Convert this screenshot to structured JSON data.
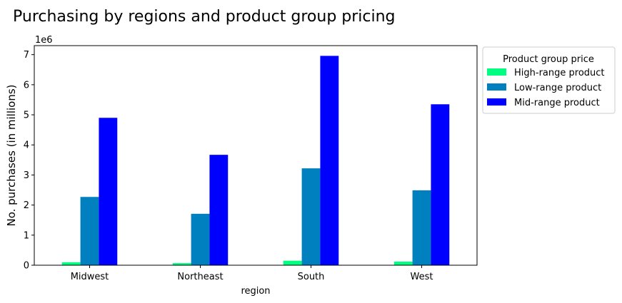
{
  "chart_data": {
    "type": "bar",
    "title": "Purchasing by regions and product group pricing",
    "xlabel": "region",
    "ylabel": "No. purchases (in millions)",
    "y_offset_label": "1e6",
    "categories": [
      "Midwest",
      "Northeast",
      "South",
      "West"
    ],
    "ylim": [
      0,
      7300000
    ],
    "yticks": [
      0,
      1000000,
      2000000,
      3000000,
      4000000,
      5000000,
      6000000,
      7000000
    ],
    "ytick_labels": [
      "0",
      "1",
      "2",
      "3",
      "4",
      "5",
      "6",
      "7"
    ],
    "grid": false,
    "legend": {
      "title": "Product group price",
      "placement": "outside upper right"
    },
    "series": [
      {
        "name": "High-range product",
        "color": "#00ff80",
        "values": [
          100000,
          70000,
          150000,
          120000
        ]
      },
      {
        "name": "Low-range product",
        "color": "#0080bf",
        "values": [
          2270000,
          1710000,
          3220000,
          2490000
        ]
      },
      {
        "name": "Mid-range product",
        "color": "#0000ff",
        "values": [
          4900000,
          3670000,
          6960000,
          5350000
        ]
      }
    ]
  }
}
